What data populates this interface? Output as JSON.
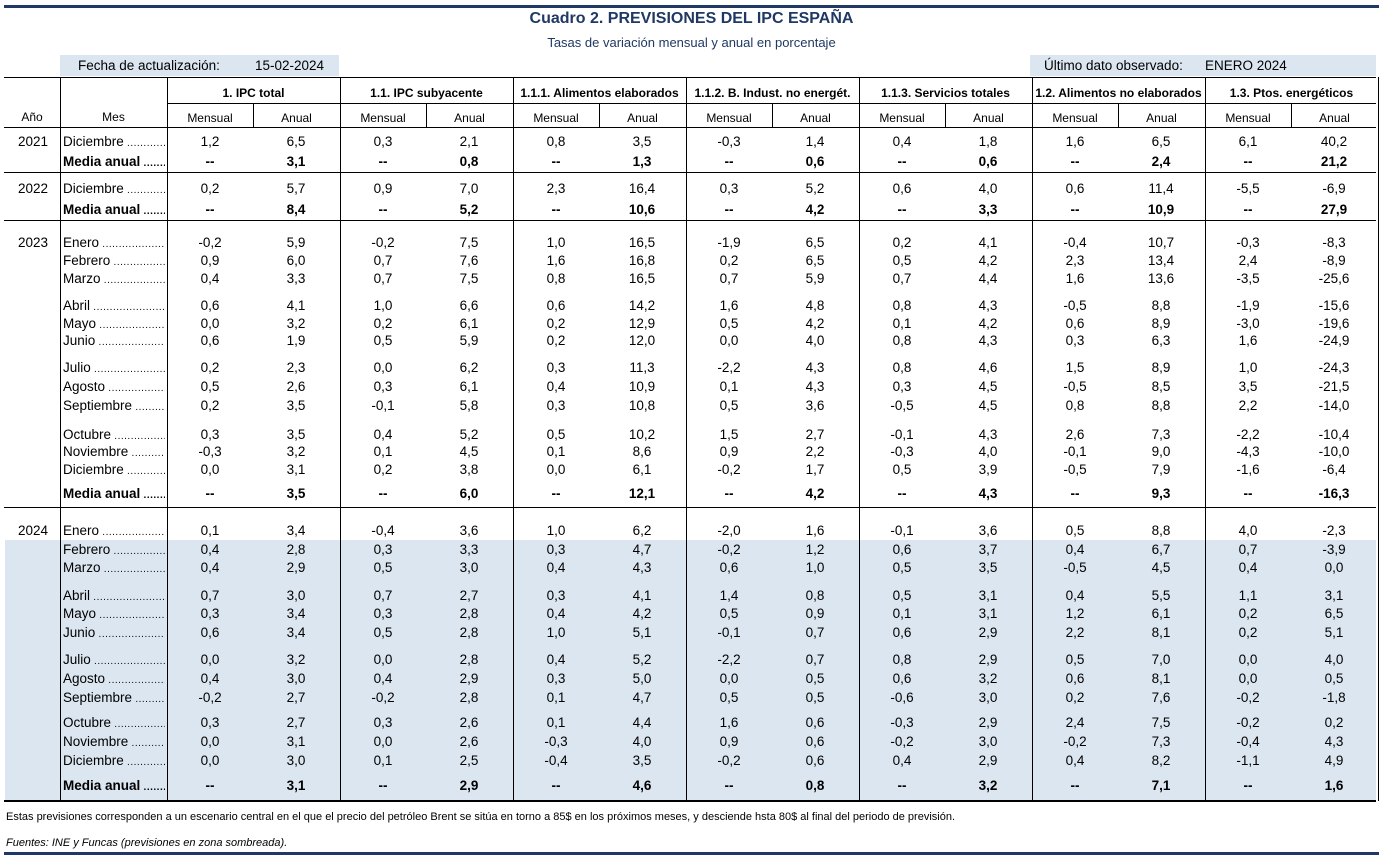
{
  "title": "Cuadro 2. PREVISIONES DEL IPC ESPAÑA",
  "subtitle": "Tasas de variación mensual y anual en porcentaje",
  "update": {
    "label": "Fecha de actualización:",
    "value": "15-02-2024"
  },
  "last_observed": {
    "label": "Último dato observado:",
    "value": "ENERO 2024"
  },
  "colors": {
    "accent": "#1f3864",
    "shade": "#dce6f1"
  },
  "headers": {
    "year": "Año",
    "month": "Mes",
    "sub": [
      "Mensual",
      "Anual"
    ],
    "groups": [
      "1. IPC total",
      "1.1. IPC subyacente",
      "1.1.1. Alimentos elaborados",
      "1.1.2. B. Indust. no energét.",
      "1.1.3. Servicios totales",
      "1.2. Alimentos no elaborados",
      "1.3. Ptos. energéticos"
    ]
  },
  "sections": [
    {
      "year": "2021",
      "rows": [
        {
          "mes": "Diciembre",
          "bold": false,
          "v": [
            "1,2",
            "6,5",
            "0,3",
            "2,1",
            "0,8",
            "3,5",
            "-0,3",
            "1,4",
            "0,4",
            "1,8",
            "1,6",
            "6,5",
            "6,1",
            "40,2"
          ]
        },
        {
          "mes": "Media anual",
          "bold": true,
          "v": [
            "--",
            "3,1",
            "--",
            "0,8",
            "--",
            "1,3",
            "--",
            "0,6",
            "--",
            "0,6",
            "--",
            "2,4",
            "--",
            "21,2"
          ]
        }
      ]
    },
    {
      "year": "2022",
      "rows": [
        {
          "mes": "Diciembre",
          "bold": false,
          "v": [
            "0,2",
            "5,7",
            "0,9",
            "7,0",
            "2,3",
            "16,4",
            "0,3",
            "5,2",
            "0,6",
            "4,0",
            "0,6",
            "11,4",
            "-5,5",
            "-6,9"
          ]
        },
        {
          "mes": "Media anual",
          "bold": true,
          "v": [
            "--",
            "8,4",
            "--",
            "5,2",
            "--",
            "10,6",
            "--",
            "4,2",
            "--",
            "3,3",
            "--",
            "10,9",
            "--",
            "27,9"
          ]
        }
      ]
    },
    {
      "year": "2023",
      "rows": [
        {
          "mes": "Enero",
          "bold": false,
          "v": [
            "-0,2",
            "5,9",
            "-0,2",
            "7,5",
            "1,0",
            "16,5",
            "-1,9",
            "6,5",
            "0,2",
            "4,1",
            "-0,4",
            "10,7",
            "-0,3",
            "-8,3"
          ]
        },
        {
          "mes": "Febrero",
          "bold": false,
          "v": [
            "0,9",
            "6,0",
            "0,7",
            "7,6",
            "1,6",
            "16,8",
            "0,2",
            "6,5",
            "0,5",
            "4,2",
            "2,3",
            "13,4",
            "2,4",
            "-8,9"
          ]
        },
        {
          "mes": "Marzo",
          "bold": false,
          "v": [
            "0,4",
            "3,3",
            "0,7",
            "7,5",
            "0,8",
            "16,5",
            "0,7",
            "5,9",
            "0,7",
            "4,4",
            "1,6",
            "13,6",
            "-3,5",
            "-25,6"
          ]
        },
        {
          "mes": "Abril",
          "bold": false,
          "v": [
            "0,6",
            "4,1",
            "1,0",
            "6,6",
            "0,6",
            "14,2",
            "1,6",
            "4,8",
            "0,8",
            "4,3",
            "-0,5",
            "8,8",
            "-1,9",
            "-15,6"
          ]
        },
        {
          "mes": "Mayo",
          "bold": false,
          "v": [
            "0,0",
            "3,2",
            "0,2",
            "6,1",
            "0,2",
            "12,9",
            "0,5",
            "4,2",
            "0,1",
            "4,2",
            "0,6",
            "8,9",
            "-3,0",
            "-19,6"
          ]
        },
        {
          "mes": "Junio",
          "bold": false,
          "v": [
            "0,6",
            "1,9",
            "0,5",
            "5,9",
            "0,2",
            "12,0",
            "0,0",
            "4,0",
            "0,8",
            "4,3",
            "0,3",
            "6,3",
            "1,6",
            "-24,9"
          ]
        },
        {
          "mes": "Julio",
          "bold": false,
          "v": [
            "0,2",
            "2,3",
            "0,0",
            "6,2",
            "0,3",
            "11,3",
            "-2,2",
            "4,3",
            "0,8",
            "4,6",
            "1,5",
            "8,9",
            "1,0",
            "-24,3"
          ]
        },
        {
          "mes": "Agosto",
          "bold": false,
          "v": [
            "0,5",
            "2,6",
            "0,3",
            "6,1",
            "0,4",
            "10,9",
            "0,1",
            "4,3",
            "0,3",
            "4,5",
            "-0,5",
            "8,5",
            "3,5",
            "-21,5"
          ]
        },
        {
          "mes": "Septiembre",
          "bold": false,
          "v": [
            "0,2",
            "3,5",
            "-0,1",
            "5,8",
            "0,3",
            "10,8",
            "0,5",
            "3,6",
            "-0,5",
            "4,5",
            "0,8",
            "8,8",
            "2,2",
            "-14,0"
          ]
        },
        {
          "mes": "Octubre",
          "bold": false,
          "v": [
            "0,3",
            "3,5",
            "0,4",
            "5,2",
            "0,5",
            "10,2",
            "1,5",
            "2,7",
            "-0,1",
            "4,3",
            "2,6",
            "7,3",
            "-2,2",
            "-10,4"
          ]
        },
        {
          "mes": "Noviembre",
          "bold": false,
          "v": [
            "-0,3",
            "3,2",
            "0,1",
            "4,5",
            "0,1",
            "8,6",
            "0,9",
            "2,2",
            "-0,3",
            "4,0",
            "-0,1",
            "9,0",
            "-4,3",
            "-10,0"
          ]
        },
        {
          "mes": "Diciembre",
          "bold": false,
          "v": [
            "0,0",
            "3,1",
            "0,2",
            "3,8",
            "0,0",
            "6,1",
            "-0,2",
            "1,7",
            "0,5",
            "3,9",
            "-0,5",
            "7,9",
            "-1,6",
            "-6,4"
          ]
        },
        {
          "mes": "Media anual",
          "bold": true,
          "v": [
            "--",
            "3,5",
            "--",
            "6,0",
            "--",
            "12,1",
            "--",
            "4,2",
            "--",
            "4,3",
            "--",
            "9,3",
            "--",
            "-16,3"
          ]
        }
      ]
    },
    {
      "year": "2024",
      "rows": [
        {
          "mes": "Enero",
          "bold": false,
          "v": [
            "0,1",
            "3,4",
            "-0,4",
            "3,6",
            "1,0",
            "6,2",
            "-2,0",
            "1,6",
            "-0,1",
            "3,6",
            "0,5",
            "8,8",
            "4,0",
            "-2,3"
          ]
        },
        {
          "mes": "Febrero",
          "bold": false,
          "v": [
            "0,4",
            "2,8",
            "0,3",
            "3,3",
            "0,3",
            "4,7",
            "-0,2",
            "1,2",
            "0,6",
            "3,7",
            "0,4",
            "6,7",
            "0,7",
            "-3,9"
          ]
        },
        {
          "mes": "Marzo",
          "bold": false,
          "v": [
            "0,4",
            "2,9",
            "0,5",
            "3,0",
            "0,4",
            "4,3",
            "0,6",
            "1,0",
            "0,5",
            "3,5",
            "-0,5",
            "4,5",
            "0,4",
            "0,0"
          ]
        },
        {
          "mes": "Abril",
          "bold": false,
          "v": [
            "0,7",
            "3,0",
            "0,7",
            "2,7",
            "0,3",
            "4,1",
            "1,4",
            "0,8",
            "0,5",
            "3,1",
            "0,4",
            "5,5",
            "1,1",
            "3,1"
          ]
        },
        {
          "mes": "Mayo",
          "bold": false,
          "v": [
            "0,3",
            "3,4",
            "0,3",
            "2,8",
            "0,4",
            "4,2",
            "0,5",
            "0,9",
            "0,1",
            "3,1",
            "1,2",
            "6,1",
            "0,2",
            "6,5"
          ]
        },
        {
          "mes": "Junio",
          "bold": false,
          "v": [
            "0,6",
            "3,4",
            "0,5",
            "2,8",
            "1,0",
            "5,1",
            "-0,1",
            "0,7",
            "0,6",
            "2,9",
            "2,2",
            "8,1",
            "0,2",
            "5,1"
          ]
        },
        {
          "mes": "Julio",
          "bold": false,
          "v": [
            "0,0",
            "3,2",
            "0,0",
            "2,8",
            "0,4",
            "5,2",
            "-2,2",
            "0,7",
            "0,8",
            "2,9",
            "0,5",
            "7,0",
            "0,0",
            "4,0"
          ]
        },
        {
          "mes": "Agosto",
          "bold": false,
          "v": [
            "0,4",
            "3,0",
            "0,4",
            "2,9",
            "0,3",
            "5,0",
            "0,0",
            "0,5",
            "0,6",
            "3,2",
            "0,6",
            "8,1",
            "0,0",
            "0,5"
          ]
        },
        {
          "mes": "Septiembre",
          "bold": false,
          "v": [
            "-0,2",
            "2,7",
            "-0,2",
            "2,8",
            "0,1",
            "4,7",
            "0,5",
            "0,5",
            "-0,6",
            "3,0",
            "0,2",
            "7,6",
            "-0,2",
            "-1,8"
          ]
        },
        {
          "mes": "Octubre",
          "bold": false,
          "v": [
            "0,3",
            "2,7",
            "0,3",
            "2,6",
            "0,1",
            "4,4",
            "1,6",
            "0,6",
            "-0,3",
            "2,9",
            "2,4",
            "7,5",
            "-0,2",
            "0,2"
          ]
        },
        {
          "mes": "Noviembre",
          "bold": false,
          "v": [
            "0,0",
            "3,1",
            "0,0",
            "2,6",
            "-0,3",
            "4,0",
            "0,9",
            "0,6",
            "-0,2",
            "3,0",
            "-0,2",
            "7,3",
            "-0,4",
            "4,3"
          ]
        },
        {
          "mes": "Diciembre",
          "bold": false,
          "v": [
            "0,0",
            "3,0",
            "0,1",
            "2,5",
            "-0,4",
            "3,5",
            "-0,2",
            "0,6",
            "0,4",
            "2,9",
            "0,4",
            "8,2",
            "-1,1",
            "4,9"
          ]
        },
        {
          "mes": "Media anual",
          "bold": true,
          "v": [
            "--",
            "3,1",
            "--",
            "2,9",
            "--",
            "4,6",
            "--",
            "0,8",
            "--",
            "3,2",
            "--",
            "7,1",
            "--",
            "1,6"
          ]
        }
      ]
    }
  ],
  "footnote": "Estas previsiones corresponden a un escenario central en el que el precio del petróleo Brent se sitúa en torno a 85$ en los próximos meses, y desciende hsta 80$ al final del periodo de previsión.",
  "sources": "Fuentes: INE y Funcas (previsiones en zona sombreada)."
}
